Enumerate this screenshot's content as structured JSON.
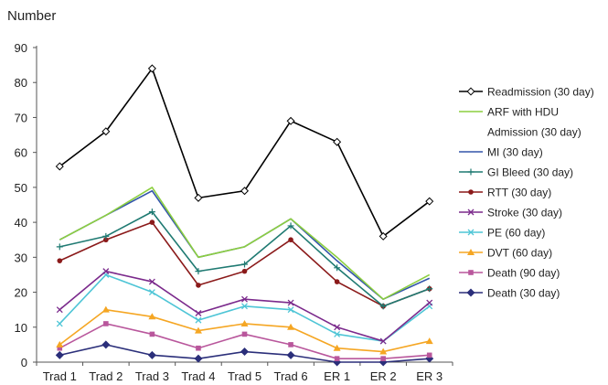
{
  "chart_data": {
    "type": "line",
    "ylabel": "Number",
    "xlabel": "",
    "title": "",
    "ylim": [
      0,
      90
    ],
    "yticks": [
      0,
      10,
      20,
      30,
      40,
      50,
      60,
      70,
      80,
      90
    ],
    "grid": false,
    "legend_position": "right",
    "categories": [
      "Trad 1",
      "Trad 2",
      "Trad 3",
      "Trad 4",
      "Trad 5",
      "Trad 6",
      "ER 1",
      "ER 2",
      "ER 3"
    ],
    "series": [
      {
        "name": "Readmission (30 day)",
        "legend_lines": [
          "Readmission (30 day)"
        ],
        "color": "#000000",
        "marker": "diamond-open",
        "values": [
          56,
          66,
          84,
          47,
          49,
          69,
          63,
          36,
          46
        ]
      },
      {
        "name": "ARF with HDU Admission (30 day)",
        "legend_lines": [
          "ARF with HDU",
          "Admission (30 day)"
        ],
        "color": "#8ccf3f",
        "marker": "none",
        "values": [
          35,
          42,
          50,
          30,
          33,
          41,
          30,
          18,
          25
        ]
      },
      {
        "name": "MI (30 day)",
        "legend_lines": [
          "MI (30 day)"
        ],
        "color": "#3355aa",
        "marker": "none",
        "values": [
          35,
          42,
          49,
          30,
          33,
          41,
          29,
          18,
          24
        ]
      },
      {
        "name": "GI Bleed (30 day)",
        "legend_lines": [
          "GI Bleed (30 day)"
        ],
        "color": "#1f7a72",
        "marker": "plus",
        "values": [
          33,
          36,
          43,
          26,
          28,
          39,
          27,
          16,
          21
        ]
      },
      {
        "name": "RTT (30 day)",
        "legend_lines": [
          "RTT (30 day)"
        ],
        "color": "#8b1a1a",
        "marker": "circle",
        "values": [
          29,
          35,
          40,
          22,
          26,
          35,
          23,
          16,
          21
        ]
      },
      {
        "name": "Stroke (30 day)",
        "legend_lines": [
          "Stroke (30 day)"
        ],
        "color": "#7b2a8c",
        "marker": "x",
        "values": [
          15,
          26,
          23,
          14,
          18,
          17,
          10,
          6,
          17
        ]
      },
      {
        "name": "PE (60 day)",
        "legend_lines": [
          "PE (60 day)"
        ],
        "color": "#4ec5d6",
        "marker": "x",
        "values": [
          11,
          25,
          20,
          12,
          16,
          15,
          8,
          6,
          16
        ]
      },
      {
        "name": "DVT (60 day)",
        "legend_lines": [
          "DVT (60 day)"
        ],
        "color": "#f5a623",
        "marker": "triangle",
        "values": [
          5,
          15,
          13,
          9,
          11,
          10,
          4,
          3,
          6
        ]
      },
      {
        "name": "Death (90 day)",
        "legend_lines": [
          "Death (90 day)"
        ],
        "color": "#b9579c",
        "marker": "square",
        "values": [
          4,
          11,
          8,
          4,
          8,
          5,
          1,
          1,
          2
        ]
      },
      {
        "name": "Death (30 day)",
        "legend_lines": [
          "Death (30 day)"
        ],
        "color": "#2b2f7a",
        "marker": "diamond",
        "values": [
          2,
          5,
          2,
          1,
          3,
          2,
          0,
          0,
          1
        ]
      }
    ]
  }
}
